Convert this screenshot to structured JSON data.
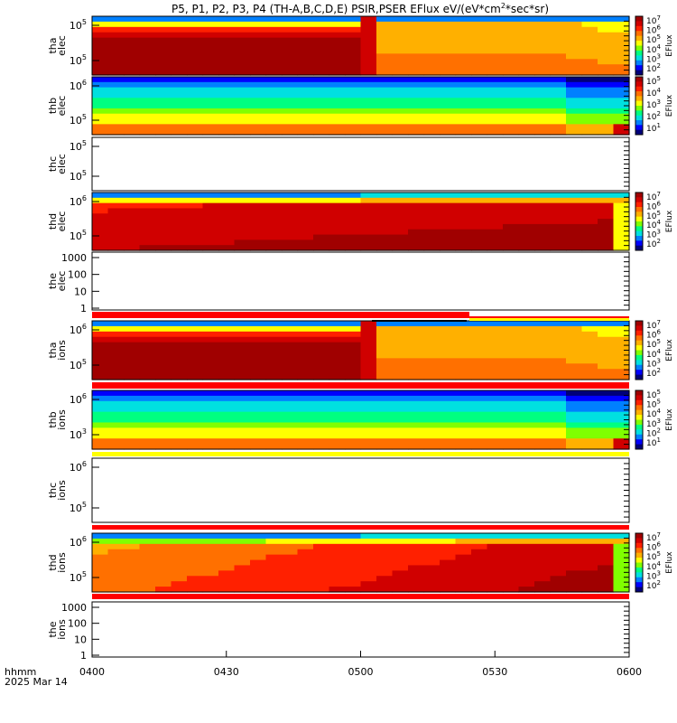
{
  "title": "P5, P1, P2, P3, P4 (TH-A,B,C,D,E) PSIR,PSER EFlux eV/(eV*cm",
  "title_sup": "2",
  "title_tail": "*sec*sr)",
  "x_axis": {
    "ticks": [
      "0400",
      "0430",
      "0500",
      "0530",
      "0600"
    ],
    "prefix_line1": "hhmm",
    "prefix_line2": "2025 Mar 14"
  },
  "chart_data": {
    "type": "heatmap",
    "x_range": [
      "04:00",
      "06:00"
    ],
    "panels": [
      {
        "label": [
          "tha",
          "elec"
        ],
        "kind": "spec",
        "colorbar_label": "EFlux",
        "yticks": [
          {
            "m": "10",
            "e": "5"
          },
          {
            "m": "10",
            "e": "5"
          }
        ],
        "cb_ticks": [
          {
            "m": "10",
            "e": "7"
          },
          {
            "m": "10",
            "e": "6"
          },
          {
            "m": "10",
            "e": "5"
          },
          {
            "m": "10",
            "e": "4"
          },
          {
            "m": "10",
            "e": "3"
          },
          {
            "m": "10",
            "e": "2"
          }
        ],
        "levels": [
          [
            8,
            8,
            8,
            8,
            8,
            8,
            8,
            8,
            8,
            8,
            8,
            8,
            8,
            8,
            8,
            8,
            8,
            8,
            8,
            8,
            8,
            8,
            8,
            8,
            8,
            8,
            8,
            8,
            8,
            8,
            8,
            8,
            8,
            8,
            8,
            8,
            8,
            8,
            8,
            8,
            8,
            8,
            8,
            8,
            8,
            8,
            8,
            8,
            8,
            8
          ],
          [
            3,
            3,
            3,
            3,
            3,
            3,
            3,
            3,
            3,
            3,
            3,
            3,
            3,
            3,
            3,
            3,
            3,
            3,
            3,
            3,
            3,
            3,
            3,
            3,
            3,
            3,
            3,
            3,
            3,
            3,
            3,
            3,
            3,
            3,
            3,
            3,
            3,
            3,
            3,
            3,
            3,
            3,
            3,
            3,
            3,
            3,
            3,
            3,
            3,
            3
          ]
        ]
      },
      {
        "label": [
          "thb",
          "elec"
        ],
        "kind": "spec",
        "colorbar_label": "EFlux",
        "yticks": [
          {
            "m": "10",
            "e": "6"
          },
          {
            "m": "10",
            "e": "5"
          }
        ],
        "cb_ticks": [
          {
            "m": "10",
            "e": "5"
          },
          {
            "m": "10",
            "e": "4"
          },
          {
            "m": "10",
            "e": "3"
          },
          {
            "m": "10",
            "e": "2"
          },
          {
            "m": "10",
            "e": "1"
          }
        ],
        "levels": []
      },
      {
        "label": [
          "thc",
          "elec"
        ],
        "kind": "empty-log",
        "yticks": [
          {
            "m": "10",
            "e": "5"
          },
          {
            "m": "10",
            "e": "5"
          }
        ]
      },
      {
        "label": [
          "thd",
          "elec"
        ],
        "kind": "spec",
        "colorbar_label": "EFlux",
        "yticks": [
          {
            "m": "10",
            "e": "6"
          },
          {
            "m": "10",
            "e": "5"
          }
        ],
        "cb_ticks": [
          {
            "m": "10",
            "e": "7"
          },
          {
            "m": "10",
            "e": "6"
          },
          {
            "m": "10",
            "e": "5"
          },
          {
            "m": "10",
            "e": "4"
          },
          {
            "m": "10",
            "e": "3"
          },
          {
            "m": "10",
            "e": "2"
          }
        ],
        "levels": []
      },
      {
        "label": [
          "the",
          "elec"
        ],
        "kind": "empty-lin",
        "yticks_text": [
          "1000",
          "100",
          "10",
          "1"
        ]
      },
      {
        "label": [
          "tha",
          "ions"
        ],
        "kind": "spec",
        "colorbar_label": "EFlux",
        "yticks": [
          {
            "m": "10",
            "e": "6"
          },
          {
            "m": "10",
            "e": "5"
          }
        ],
        "cb_ticks": [
          {
            "m": "10",
            "e": "7"
          },
          {
            "m": "10",
            "e": "6"
          },
          {
            "m": "10",
            "e": "5"
          },
          {
            "m": "10",
            "e": "4"
          },
          {
            "m": "10",
            "e": "3"
          },
          {
            "m": "10",
            "e": "2"
          }
        ],
        "levels": []
      },
      {
        "label": [
          "thb",
          "ions"
        ],
        "kind": "spec",
        "colorbar_label": "EFlux",
        "yticks": [
          {
            "m": "10",
            "e": "6"
          },
          {
            "m": "10",
            "e": "3"
          }
        ],
        "cb_ticks": [
          {
            "m": "10",
            "e": "5"
          },
          {
            "m": "10",
            "e": "5"
          },
          {
            "m": "10",
            "e": "4"
          },
          {
            "m": "10",
            "e": "3"
          },
          {
            "m": "10",
            "e": "2"
          },
          {
            "m": "10",
            "e": "1"
          }
        ],
        "levels": []
      },
      {
        "label": [
          "thc",
          "ions"
        ],
        "kind": "empty-log",
        "yticks": [
          {
            "m": "10",
            "e": "6"
          },
          {
            "m": "10",
            "e": "5"
          }
        ]
      },
      {
        "label": [
          "thd",
          "ions"
        ],
        "kind": "spec",
        "colorbar_label": "EFlux",
        "yticks": [
          {
            "m": "10",
            "e": "6"
          },
          {
            "m": "10",
            "e": "5"
          }
        ],
        "cb_ticks": [
          {
            "m": "10",
            "e": "7"
          },
          {
            "m": "10",
            "e": "6"
          },
          {
            "m": "10",
            "e": "5"
          },
          {
            "m": "10",
            "e": "4"
          },
          {
            "m": "10",
            "e": "3"
          },
          {
            "m": "10",
            "e": "2"
          }
        ],
        "levels": []
      },
      {
        "label": [
          "the",
          "ions"
        ],
        "kind": "empty-lin",
        "yticks_text": [
          "1000",
          "100",
          "10",
          "1"
        ]
      }
    ]
  }
}
